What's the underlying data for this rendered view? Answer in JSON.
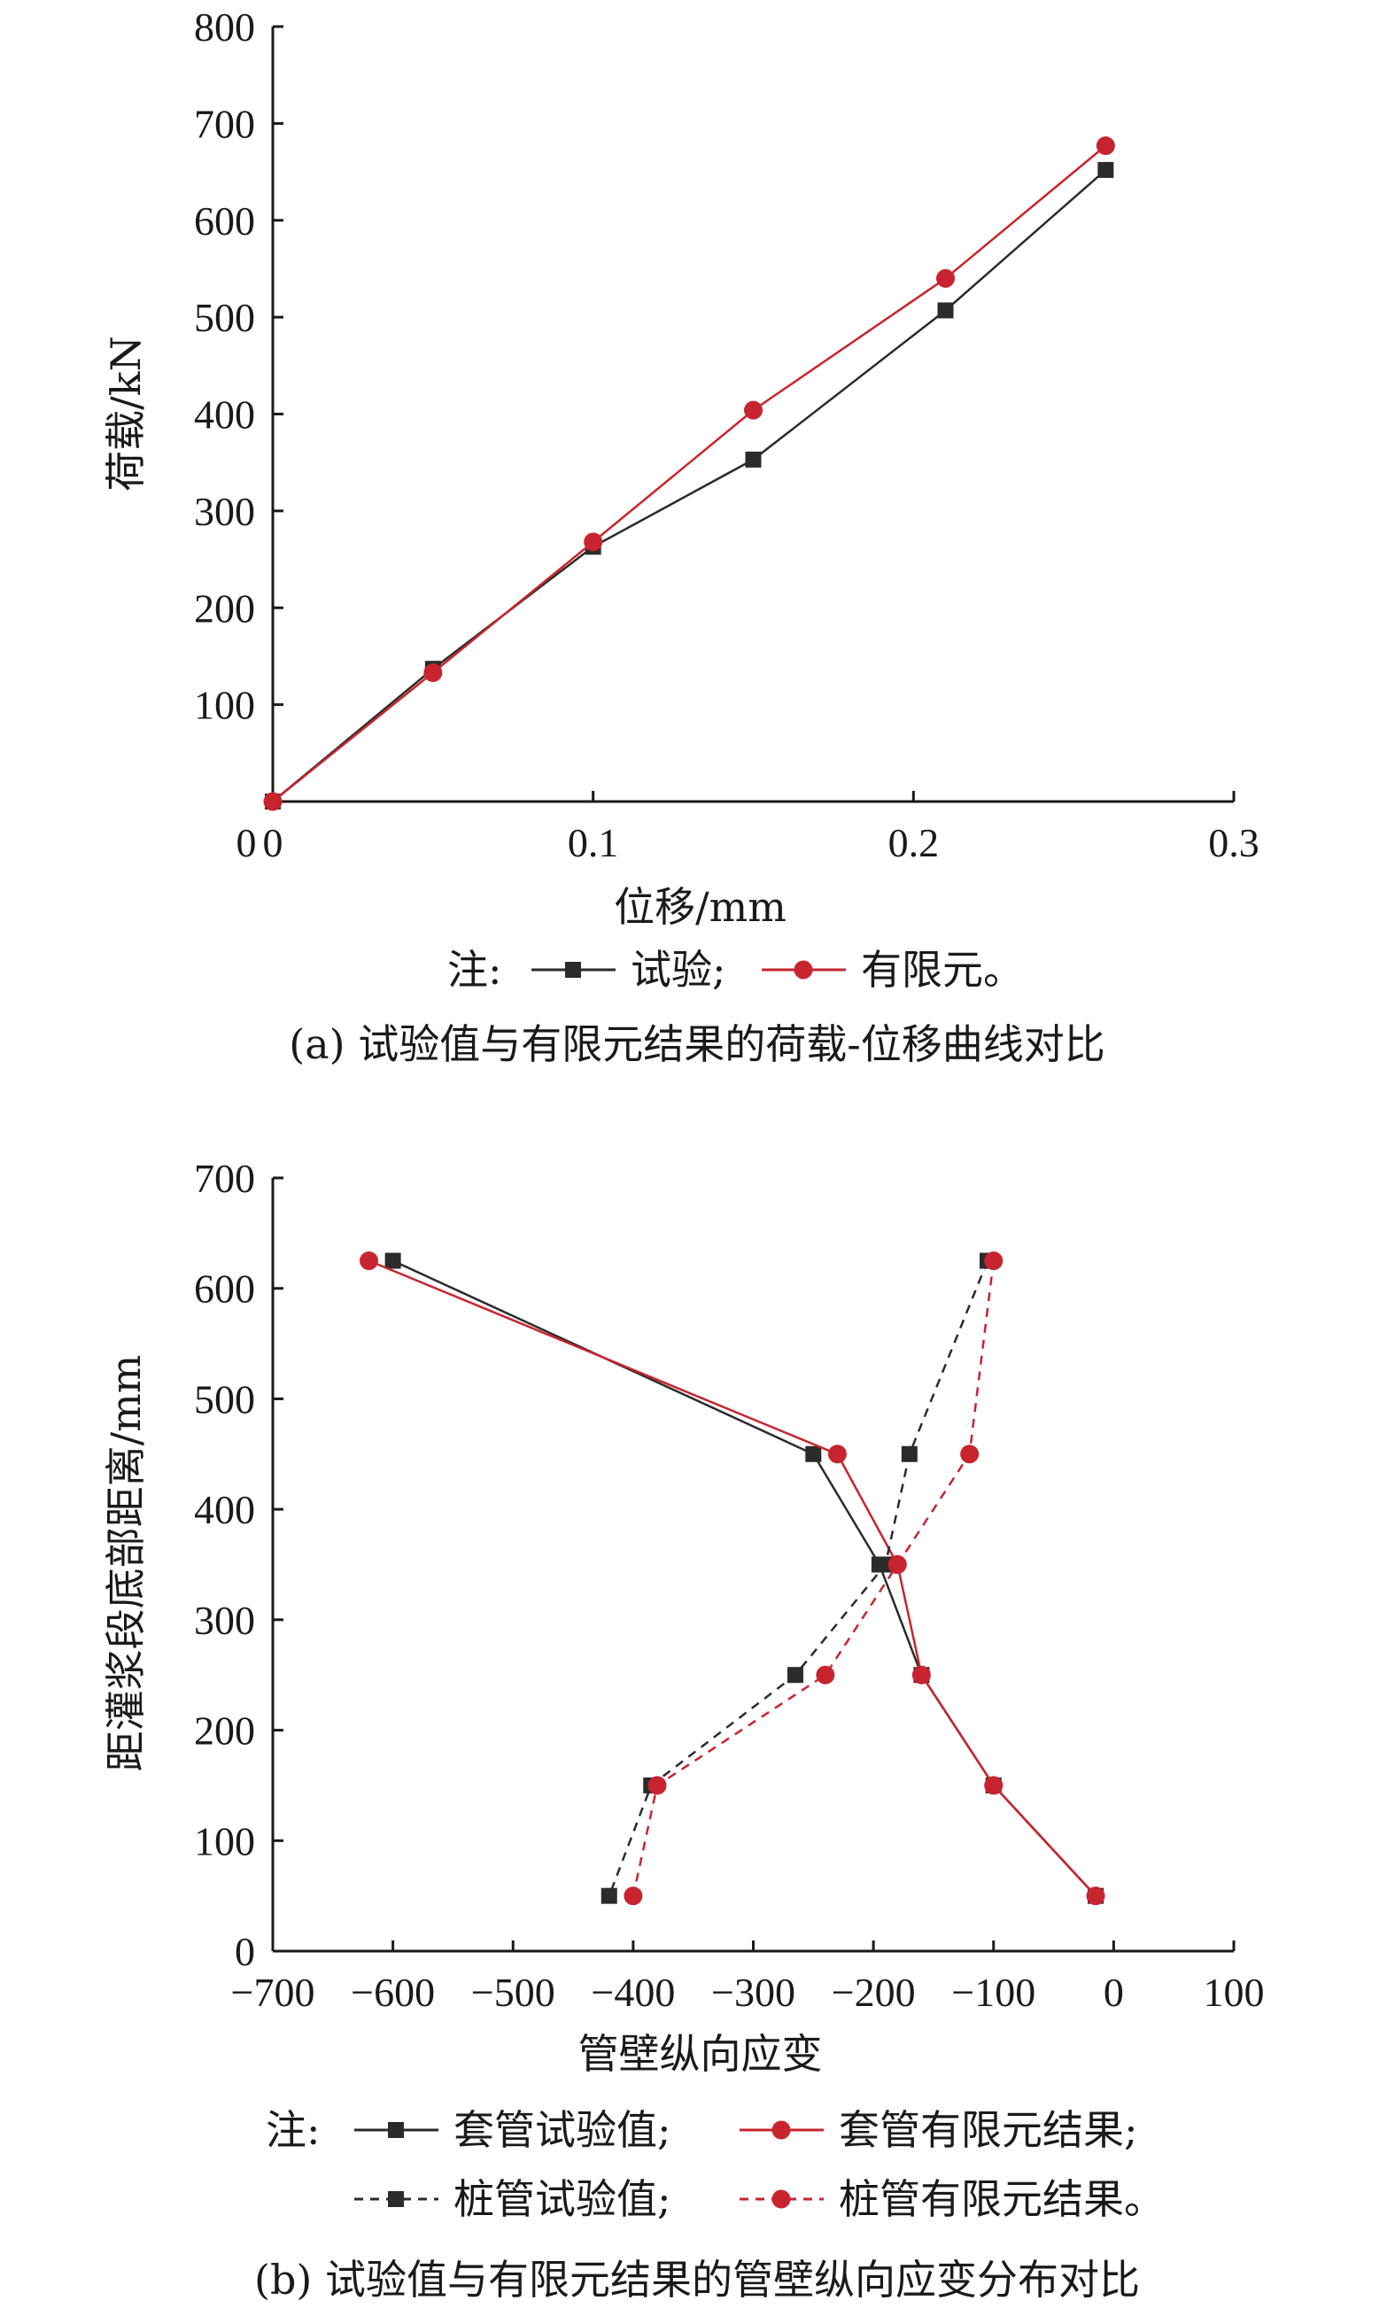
{
  "chart_data": [
    {
      "type": "line",
      "xlabel": "位移/mm",
      "ylabel": "荷载/kN",
      "xlim": [
        0,
        0.3
      ],
      "ylim": [
        0,
        800
      ],
      "xticks": [
        0,
        0.1,
        0.2,
        0.3
      ],
      "xtick_labels": [
        "0",
        "0.1",
        "0.2",
        "0.3"
      ],
      "yticks": [
        100,
        200,
        300,
        400,
        500,
        600,
        700,
        800
      ],
      "ytick_labels": [
        "100",
        "200",
        "300",
        "400",
        "500",
        "600",
        "700",
        "800"
      ],
      "legend_prefix": "注:",
      "caption": "(a) 试验值与有限元结果的荷载-位移曲线对比",
      "series": [
        {
          "name": "试验",
          "legend_label": "试验;",
          "color": "#2b2b2b",
          "marker": "square",
          "dashed": false,
          "x": [
            0,
            0.05,
            0.1,
            0.15,
            0.21,
            0.26
          ],
          "y": [
            0,
            137,
            263,
            353,
            507,
            652
          ]
        },
        {
          "name": "有限元",
          "legend_label": "有限元。",
          "color": "#c8242f",
          "marker": "circle",
          "dashed": false,
          "x": [
            0,
            0.05,
            0.1,
            0.15,
            0.21,
            0.26
          ],
          "y": [
            0,
            133,
            268,
            404,
            540,
            677
          ]
        }
      ]
    },
    {
      "type": "line",
      "xlabel": "管壁纵向应变",
      "ylabel": "距灌浆段底部距离/mm",
      "xlim": [
        -700,
        100
      ],
      "ylim": [
        0,
        700
      ],
      "xticks": [
        -700,
        -600,
        -500,
        -400,
        -300,
        -200,
        -100,
        0,
        100
      ],
      "xtick_labels": [
        "−700",
        "−600",
        "−500",
        "−400",
        "−300",
        "−200",
        "−100",
        "0",
        "100"
      ],
      "yticks": [
        0,
        100,
        200,
        300,
        400,
        500,
        600,
        700
      ],
      "ytick_labels": [
        "0",
        "100",
        "200",
        "300",
        "400",
        "500",
        "600",
        "700"
      ],
      "legend_prefix": "注:",
      "caption": "(b) 试验值与有限元结果的管壁纵向应变分布对比",
      "series": [
        {
          "name": "套管试验值",
          "legend_label": "套管试验值;",
          "color": "#2b2b2b",
          "marker": "square",
          "dashed": false,
          "x": [
            -600,
            -250,
            -195,
            -160,
            -100,
            -15
          ],
          "y": [
            625,
            450,
            350,
            250,
            150,
            50
          ]
        },
        {
          "name": "套管有限元结果",
          "legend_label": "套管有限元结果;",
          "color": "#c8242f",
          "marker": "circle",
          "dashed": false,
          "x": [
            -620,
            -230,
            -180,
            -160,
            -100,
            -15
          ],
          "y": [
            625,
            450,
            350,
            250,
            150,
            50
          ]
        },
        {
          "name": "桩管试验值",
          "legend_label": "桩管试验值;",
          "color": "#2b2b2b",
          "marker": "square",
          "dashed": true,
          "x": [
            -105,
            -170,
            -190,
            -265,
            -385,
            -420
          ],
          "y": [
            625,
            450,
            350,
            250,
            150,
            50
          ]
        },
        {
          "name": "桩管有限元结果",
          "legend_label": "桩管有限元结果。",
          "color": "#c8242f",
          "marker": "circle",
          "dashed": true,
          "x": [
            -100,
            -120,
            -180,
            -240,
            -380,
            -400
          ],
          "y": [
            625,
            450,
            350,
            250,
            150,
            50
          ]
        }
      ]
    }
  ]
}
